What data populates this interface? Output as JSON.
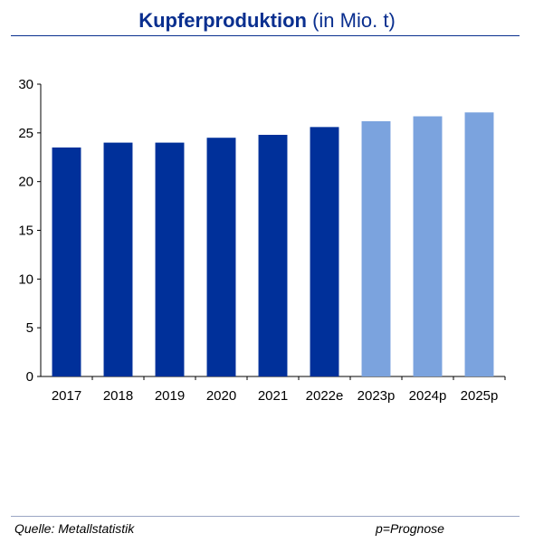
{
  "header": {
    "title": "Kupferproduktion",
    "unit": "(in Mio. t)"
  },
  "footer": {
    "source": "Quelle: Metallstatistik",
    "note": "p=Prognose"
  },
  "colors": {
    "actual": "#00309a",
    "forecast": "#7ba3de",
    "title": "#0a2f8f"
  },
  "chart_data": {
    "type": "bar",
    "categories": [
      "2017",
      "2018",
      "2019",
      "2020",
      "2021",
      "2022e",
      "2023p",
      "2024p",
      "2025p"
    ],
    "values": [
      23.5,
      24.0,
      24.0,
      24.5,
      24.8,
      25.6,
      26.2,
      26.7,
      27.1
    ],
    "forecast": [
      false,
      false,
      false,
      false,
      false,
      false,
      true,
      true,
      true
    ],
    "ylim": [
      0,
      30
    ],
    "yticks": [
      0,
      5,
      10,
      15,
      20,
      25,
      30
    ],
    "grid": false,
    "title": "Kupferproduktion",
    "xlabel": "",
    "ylabel": ""
  }
}
